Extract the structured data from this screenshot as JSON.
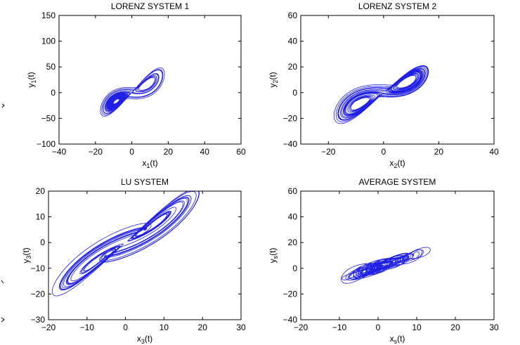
{
  "chart_data": [
    {
      "type": "line",
      "system": "lorenz",
      "params": {
        "sigma": 10,
        "rho": 28,
        "beta": 2.6667,
        "y_scale": 2.0
      },
      "title": "LORENZ SYSTEM 1",
      "xlabel": {
        "base": "x",
        "sub": "1",
        "suffix": "(t)"
      },
      "ylabel": {
        "base": "y",
        "sub": "1",
        "suffix": "(t)"
      },
      "xlim": [
        -40,
        60
      ],
      "ylim": [
        -100,
        150
      ],
      "xticks": [
        -40,
        -20,
        0,
        20,
        40,
        60
      ],
      "yticks": [
        -100,
        -50,
        0,
        50,
        100,
        150
      ],
      "xtick_labels": [
        "−40",
        "−20",
        "0",
        "20",
        "40",
        "60"
      ],
      "ytick_labels": [
        "−100",
        "−50",
        "0",
        "50",
        "100",
        "150"
      ],
      "grid": false,
      "color": "#1f1fe6"
    },
    {
      "type": "line",
      "system": "lorenz",
      "params": {
        "sigma": 10,
        "rho": 28,
        "beta": 2.6667,
        "y_scale": 1.0
      },
      "title": "LORENZ SYSTEM 2",
      "xlabel": {
        "base": "x",
        "sub": "2",
        "suffix": "(t)"
      },
      "ylabel": {
        "base": "y",
        "sub": "2",
        "suffix": "(t)"
      },
      "xlim": [
        -30,
        40
      ],
      "ylim": [
        -40,
        60
      ],
      "xticks": [
        -20,
        0,
        20,
        40
      ],
      "yticks": [
        -40,
        -20,
        0,
        20,
        40,
        60
      ],
      "xtick_labels": [
        "−20",
        "0",
        "20",
        "40"
      ],
      "ytick_labels": [
        "−40",
        "−20",
        "0",
        "20",
        "40",
        "60"
      ],
      "grid": false,
      "color": "#1f1fe6"
    },
    {
      "type": "line",
      "system": "lu",
      "params": {
        "a": 36,
        "b": 3,
        "c": 20,
        "y_scale": 1.0
      },
      "title": "LU SYSTEM",
      "xlabel": {
        "base": "x",
        "sub": "3",
        "suffix": "(t)"
      },
      "ylabel": {
        "base": "y",
        "sub": "3",
        "suffix": "(t)"
      },
      "xlim": [
        -20,
        30
      ],
      "ylim": [
        -30,
        20
      ],
      "xticks": [
        -20,
        -10,
        0,
        10,
        20,
        30
      ],
      "yticks": [
        -30,
        -20,
        -10,
        0,
        10,
        20
      ],
      "xtick_labels": [
        "−20",
        "−10",
        "0",
        "10",
        "20",
        "30"
      ],
      "ytick_labels": [
        "−30",
        "−20",
        "−10",
        "0",
        "10",
        "20"
      ],
      "grid": false,
      "color": "#1f1fe6"
    },
    {
      "type": "line",
      "system": "average",
      "params": {
        "y_scale": 1.0
      },
      "title": "AVERAGE SYSTEM",
      "xlabel": {
        "base": "x",
        "sub": "s",
        "suffix": "(t)"
      },
      "ylabel": {
        "base": "y",
        "sub": "s",
        "suffix": "(t)"
      },
      "xlim": [
        -20,
        30
      ],
      "ylim": [
        -40,
        60
      ],
      "xticks": [
        -20,
        -10,
        0,
        10,
        20,
        30
      ],
      "yticks": [
        -40,
        -20,
        0,
        20,
        40,
        60
      ],
      "xtick_labels": [
        "−20",
        "−10",
        "0",
        "10",
        "20",
        "30"
      ],
      "ytick_labels": [
        "−40",
        "−20",
        "0",
        "20",
        "40",
        "60"
      ],
      "grid": false,
      "color": "#1f1fe6"
    }
  ]
}
